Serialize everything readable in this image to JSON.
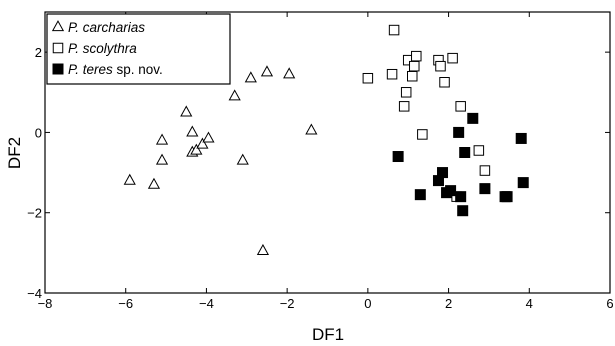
{
  "chart_data": {
    "type": "scatter",
    "title": "",
    "xlabel": "DF1",
    "ylabel": "DF2",
    "xlim": [
      -8,
      6
    ],
    "ylim": [
      -4,
      3
    ],
    "xticks": [
      -8,
      -6,
      -4,
      -2,
      0,
      2,
      4,
      6
    ],
    "yticks": [
      -4,
      -2,
      0,
      2
    ],
    "legend_position": "top-left",
    "series": [
      {
        "name": "P. carcharias",
        "name_italic": "P. carcharias",
        "name_suffix": "",
        "marker": "open-triangle",
        "points": [
          [
            -5.9,
            -1.2
          ],
          [
            -5.3,
            -1.3
          ],
          [
            -5.1,
            -0.7
          ],
          [
            -5.1,
            -0.2
          ],
          [
            -4.5,
            0.5
          ],
          [
            -4.35,
            0.0
          ],
          [
            -4.35,
            -0.5
          ],
          [
            -4.25,
            -0.45
          ],
          [
            -4.1,
            -0.3
          ],
          [
            -3.95,
            -0.15
          ],
          [
            -3.3,
            0.9
          ],
          [
            -3.1,
            -0.7
          ],
          [
            -2.9,
            1.35
          ],
          [
            -2.5,
            1.5
          ],
          [
            -1.95,
            1.45
          ],
          [
            -1.4,
            0.05
          ],
          [
            -2.6,
            -2.95
          ]
        ]
      },
      {
        "name": "P. scolythra",
        "name_italic": "P. scolythra",
        "name_suffix": "",
        "marker": "open-square",
        "points": [
          [
            0.0,
            1.35
          ],
          [
            0.65,
            2.55
          ],
          [
            0.6,
            1.45
          ],
          [
            0.9,
            0.65
          ],
          [
            0.95,
            1.0
          ],
          [
            1.0,
            1.8
          ],
          [
            1.15,
            1.65
          ],
          [
            1.2,
            1.9
          ],
          [
            1.1,
            1.4
          ],
          [
            1.35,
            -0.05
          ],
          [
            1.75,
            1.8
          ],
          [
            1.8,
            1.65
          ],
          [
            1.9,
            1.25
          ],
          [
            2.1,
            1.85
          ],
          [
            2.3,
            0.65
          ],
          [
            2.75,
            -0.45
          ],
          [
            2.9,
            -0.95
          ],
          [
            2.2,
            -1.6
          ]
        ]
      },
      {
        "name": "P. teres sp. nov.",
        "name_italic": "P. teres",
        "name_suffix": " sp. nov.",
        "marker": "filled-square",
        "points": [
          [
            0.75,
            -0.6
          ],
          [
            1.3,
            -1.55
          ],
          [
            1.75,
            -1.2
          ],
          [
            1.85,
            -1.0
          ],
          [
            1.95,
            -1.5
          ],
          [
            2.05,
            -1.45
          ],
          [
            2.25,
            0.0
          ],
          [
            2.3,
            -1.6
          ],
          [
            2.35,
            -1.95
          ],
          [
            2.4,
            -0.5
          ],
          [
            2.6,
            0.35
          ],
          [
            2.9,
            -1.4
          ],
          [
            3.4,
            -1.6
          ],
          [
            3.45,
            -1.6
          ],
          [
            3.8,
            -0.15
          ],
          [
            3.85,
            -1.25
          ]
        ]
      }
    ]
  }
}
